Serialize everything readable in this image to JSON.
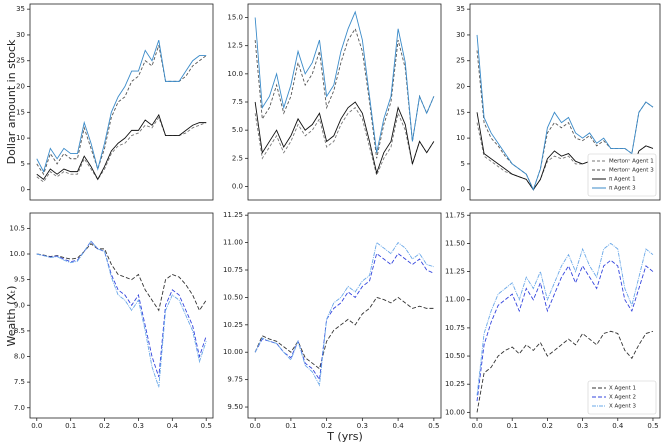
{
  "figure": {
    "ylabel_top": "Dollar amount in stock",
    "ylabel_bottom": "Wealth (Xₜ)",
    "xlabel": "T (yrs)"
  },
  "chart_data": [
    {
      "type": "line",
      "x": [
        0,
        0.02,
        0.04,
        0.06,
        0.08,
        0.1,
        0.12,
        0.14,
        0.16,
        0.18,
        0.2,
        0.22,
        0.24,
        0.26,
        0.28,
        0.3,
        0.32,
        0.34,
        0.36,
        0.38,
        0.4,
        0.42,
        0.44,
        0.46,
        0.48,
        0.5
      ],
      "xlim": [
        -0.02,
        0.52
      ],
      "ylim": [
        -2,
        36
      ],
      "yticks": [
        0,
        5,
        10,
        15,
        20,
        25,
        30,
        35
      ],
      "series": [
        {
          "color": "#777777",
          "dash": "3,2",
          "values": [
            2.5,
            1.5,
            3.5,
            2.5,
            3.5,
            3,
            3,
            6,
            4,
            2,
            4,
            7,
            8.5,
            9,
            10.5,
            11,
            12.5,
            12,
            14,
            10.5,
            10.5,
            10.5,
            11,
            12,
            12.5,
            13
          ]
        },
        {
          "color": "#555555",
          "dash": "3,2",
          "values": [
            5,
            3,
            7,
            5,
            7,
            6,
            6,
            12,
            8,
            4,
            8,
            14,
            17,
            18,
            21,
            22,
            25,
            24,
            28,
            21,
            21,
            21,
            22,
            24,
            25,
            26
          ]
        },
        {
          "color": "#111111",
          "dash": "none",
          "values": [
            3,
            2,
            4,
            3,
            4,
            3.5,
            3.5,
            6.5,
            4.5,
            2,
            4.5,
            7.5,
            9,
            10,
            11.5,
            11.5,
            13.5,
            12.5,
            14.5,
            10.5,
            10.5,
            10.5,
            11.5,
            12.5,
            13,
            13
          ]
        },
        {
          "color": "#3b8bc9",
          "dash": "none",
          "values": [
            6,
            3.5,
            8,
            6,
            8,
            7,
            7,
            13,
            9,
            4,
            9,
            15,
            18,
            20,
            23,
            23,
            27,
            25,
            29,
            21,
            21,
            21,
            23,
            25,
            26,
            26
          ]
        }
      ]
    },
    {
      "type": "line",
      "x": [
        0,
        0.02,
        0.04,
        0.06,
        0.08,
        0.1,
        0.12,
        0.14,
        0.16,
        0.18,
        0.2,
        0.22,
        0.24,
        0.26,
        0.28,
        0.3,
        0.32,
        0.34,
        0.36,
        0.38,
        0.4,
        0.42,
        0.44,
        0.46,
        0.48,
        0.5
      ],
      "xlim": [
        -0.02,
        0.52
      ],
      "ylim": [
        -1.2,
        16.2
      ],
      "yticks": [
        {
          "value": 0,
          "label": "0.0"
        },
        2.5,
        {
          "value": 5,
          "label": "5.0"
        },
        7.5,
        {
          "value": 10,
          "label": "10.0"
        },
        12.5,
        {
          "value": 15,
          "label": "15.0"
        }
      ],
      "series": [
        {
          "color": "#777777",
          "dash": "3,2",
          "values": [
            6.5,
            2.5,
            3.5,
            4.5,
            3,
            4,
            5.5,
            4.5,
            5,
            6,
            3.5,
            4,
            5.5,
            6.5,
            7,
            6,
            3.5,
            1,
            2.5,
            3.5,
            6.5,
            5,
            2,
            4,
            3,
            4
          ]
        },
        {
          "color": "#555555",
          "dash": "3,2",
          "values": [
            13,
            6,
            7,
            9,
            6.5,
            8,
            11,
            9,
            10,
            12,
            7,
            8.5,
            11,
            13,
            14,
            12,
            7.5,
            2.5,
            5.5,
            7.5,
            13,
            10.5,
            4,
            8,
            6.5,
            8
          ]
        },
        {
          "color": "#111111",
          "dash": "none",
          "values": [
            7.5,
            3,
            4,
            5,
            3.5,
            4.5,
            6,
            5,
            5.5,
            6.5,
            4,
            4.5,
            6,
            7,
            7.5,
            6.5,
            4,
            1.2,
            3,
            4,
            7,
            5.5,
            2,
            4,
            3,
            4
          ]
        },
        {
          "color": "#3b8bc9",
          "dash": "none",
          "values": [
            15,
            7,
            8,
            10,
            7,
            9,
            12,
            10,
            11,
            13,
            8,
            9,
            12,
            14,
            15.5,
            13,
            8,
            3,
            6,
            8,
            14,
            11,
            4,
            8,
            6.5,
            8
          ]
        }
      ]
    },
    {
      "type": "line",
      "x": [
        0,
        0.02,
        0.04,
        0.06,
        0.08,
        0.1,
        0.12,
        0.14,
        0.16,
        0.18,
        0.2,
        0.22,
        0.24,
        0.26,
        0.28,
        0.3,
        0.32,
        0.34,
        0.36,
        0.38,
        0.4,
        0.42,
        0.44,
        0.46,
        0.48,
        0.5
      ],
      "xlim": [
        -0.02,
        0.52
      ],
      "ylim": [
        -2,
        36
      ],
      "yticks": [
        0,
        5,
        10,
        15,
        20,
        25,
        30,
        35
      ],
      "legend": "lower right",
      "series": [
        {
          "name": "Mertonᶜ Agent 1",
          "color": "#777777",
          "dash": "3,2",
          "values": [
            13,
            6.5,
            5.5,
            4.5,
            3.5,
            3,
            2.5,
            2,
            0,
            2,
            5.5,
            6.5,
            6,
            6.5,
            5,
            5,
            5.5,
            4.5,
            5,
            4,
            4,
            4,
            3.5,
            7.5,
            8.5,
            8
          ]
        },
        {
          "name": "Mertonᶜ Agent 3",
          "color": "#555555",
          "dash": "3,2",
          "values": [
            27,
            13,
            10,
            8.5,
            6.5,
            5,
            4,
            3,
            0,
            4,
            11,
            13,
            12,
            13,
            10,
            9.5,
            10.5,
            8.5,
            9.5,
            8,
            8,
            8,
            7,
            15,
            17,
            16
          ]
        },
        {
          "name": "π Agent 1",
          "color": "#111111",
          "dash": "none",
          "values": [
            15,
            7,
            6,
            5,
            4,
            3,
            2.5,
            2,
            0,
            2,
            6,
            7.5,
            6.5,
            7,
            5.5,
            5,
            5.5,
            4.5,
            5,
            4,
            4,
            4,
            3.5,
            7.5,
            8.5,
            8
          ]
        },
        {
          "name": "π Agent 3",
          "color": "#3b8bc9",
          "dash": "none",
          "values": [
            30,
            14,
            11,
            9,
            7,
            5,
            4,
            3,
            0,
            4,
            12,
            15,
            13,
            14,
            11,
            10,
            11,
            9,
            10,
            8,
            8,
            8,
            7,
            15,
            17,
            16
          ]
        }
      ]
    },
    {
      "type": "line",
      "x": [
        0,
        0.02,
        0.04,
        0.06,
        0.08,
        0.1,
        0.12,
        0.14,
        0.16,
        0.18,
        0.2,
        0.22,
        0.24,
        0.26,
        0.28,
        0.3,
        0.32,
        0.34,
        0.36,
        0.38,
        0.4,
        0.42,
        0.44,
        0.46,
        0.48,
        0.5
      ],
      "xlim": [
        -0.02,
        0.52
      ],
      "xticks": [
        {
          "value": 0,
          "label": "0.0"
        },
        0.1,
        0.2,
        0.3,
        0.4,
        0.5
      ],
      "ylim": [
        6.8,
        10.8
      ],
      "yticks": [
        {
          "value": 7,
          "label": "7.0"
        },
        7.5,
        {
          "value": 8,
          "label": "8.0"
        },
        8.5,
        {
          "value": 9,
          "label": "9.0"
        },
        9.5,
        {
          "value": 10,
          "label": "10.0"
        },
        10.5
      ],
      "series": [
        {
          "color": "#333333",
          "dash": "4,2",
          "values": [
            10,
            9.98,
            9.95,
            9.97,
            9.93,
            9.9,
            9.92,
            10.05,
            10.2,
            10.1,
            10.1,
            9.8,
            9.6,
            9.55,
            9.5,
            9.6,
            9.3,
            9.1,
            8.9,
            9.5,
            9.6,
            9.55,
            9.4,
            9.2,
            8.9,
            9.1
          ]
        },
        {
          "color": "#3344dd",
          "dash": "4,2",
          "values": [
            10,
            9.97,
            9.94,
            9.96,
            9.9,
            9.85,
            9.88,
            10.05,
            10.25,
            10.1,
            10.05,
            9.6,
            9.3,
            9.2,
            9,
            9.2,
            8.6,
            8,
            7.6,
            9,
            9.3,
            9.2,
            8.9,
            8.6,
            8,
            8.4
          ]
        },
        {
          "color": "#6aa8e8",
          "dash": "4,1,1,1",
          "values": [
            10,
            9.97,
            9.93,
            9.95,
            9.88,
            9.83,
            9.86,
            10.05,
            10.25,
            10.1,
            10.05,
            9.55,
            9.2,
            9.1,
            8.9,
            9.1,
            8.5,
            7.8,
            7.4,
            8.9,
            9.2,
            9.1,
            8.8,
            8.5,
            7.9,
            8.3
          ]
        }
      ]
    },
    {
      "type": "line",
      "x": [
        0,
        0.02,
        0.04,
        0.06,
        0.08,
        0.1,
        0.12,
        0.14,
        0.16,
        0.18,
        0.2,
        0.22,
        0.24,
        0.26,
        0.28,
        0.3,
        0.32,
        0.34,
        0.36,
        0.38,
        0.4,
        0.42,
        0.44,
        0.46,
        0.48,
        0.5
      ],
      "xlim": [
        -0.02,
        0.52
      ],
      "xticks": [
        {
          "value": 0,
          "label": "0.0"
        },
        0.1,
        0.2,
        0.3,
        0.4,
        0.5
      ],
      "ylim": [
        9.4,
        11.27
      ],
      "yticks": [
        {
          "value": 9.5,
          "label": "9.50"
        },
        9.75,
        {
          "value": 10,
          "label": "10.00"
        },
        10.25,
        {
          "value": 10.5,
          "label": "10.50"
        },
        10.75,
        {
          "value": 11,
          "label": "11.00"
        },
        11.25
      ],
      "series": [
        {
          "color": "#333333",
          "dash": "4,2",
          "values": [
            10,
            10.15,
            10.12,
            10.1,
            10.05,
            10,
            10.1,
            9.95,
            9.9,
            9.85,
            10.1,
            10.2,
            10.25,
            10.3,
            10.25,
            10.35,
            10.4,
            10.5,
            10.48,
            10.45,
            10.5,
            10.45,
            10.4,
            10.42,
            10.4,
            10.4
          ]
        },
        {
          "color": "#3344dd",
          "dash": "4,2",
          "values": [
            10,
            10.12,
            10.1,
            10.08,
            10,
            9.95,
            10.1,
            9.9,
            9.85,
            9.75,
            10.3,
            10.4,
            10.45,
            10.55,
            10.5,
            10.6,
            10.65,
            10.9,
            10.85,
            10.8,
            10.9,
            10.85,
            10.8,
            10.85,
            10.75,
            10.72
          ]
        },
        {
          "color": "#6aa8e8",
          "dash": "4,1,1,1",
          "values": [
            10,
            10.13,
            10.1,
            10.08,
            10,
            9.93,
            10.1,
            9.88,
            9.82,
            9.7,
            10.3,
            10.45,
            10.5,
            10.6,
            10.55,
            10.65,
            10.7,
            11,
            10.95,
            10.9,
            11,
            10.95,
            10.85,
            10.9,
            10.8,
            10.78
          ]
        }
      ]
    },
    {
      "type": "line",
      "x": [
        0,
        0.02,
        0.04,
        0.06,
        0.08,
        0.1,
        0.12,
        0.14,
        0.16,
        0.18,
        0.2,
        0.22,
        0.24,
        0.26,
        0.28,
        0.3,
        0.32,
        0.34,
        0.36,
        0.38,
        0.4,
        0.42,
        0.44,
        0.46,
        0.48,
        0.5
      ],
      "xlim": [
        -0.02,
        0.52
      ],
      "xticks": [
        {
          "value": 0,
          "label": "0.0"
        },
        0.1,
        0.2,
        0.3,
        0.4,
        0.5
      ],
      "ylim": [
        9.95,
        11.77
      ],
      "yticks": [
        {
          "value": 10,
          "label": "10.00"
        },
        10.25,
        {
          "value": 10.5,
          "label": "10.50"
        },
        10.75,
        {
          "value": 11,
          "label": "11.00"
        },
        11.25,
        {
          "value": 11.5,
          "label": "11.50"
        },
        11.75
      ],
      "legend": "lower right",
      "series": [
        {
          "name": "X Agent 1",
          "color": "#333333",
          "dash": "4,2",
          "values": [
            10,
            10.35,
            10.4,
            10.5,
            10.55,
            10.58,
            10.52,
            10.6,
            10.55,
            10.62,
            10.5,
            10.55,
            10.6,
            10.65,
            10.6,
            10.7,
            10.65,
            10.6,
            10.7,
            10.72,
            10.7,
            10.55,
            10.48,
            10.6,
            10.7,
            10.72
          ]
        },
        {
          "name": "X Agent 2",
          "color": "#3344dd",
          "dash": "4,2",
          "values": [
            10.1,
            10.6,
            10.8,
            10.95,
            11,
            11.05,
            10.9,
            11.1,
            11,
            11.15,
            10.9,
            11.05,
            11.2,
            11.3,
            11.15,
            11.3,
            11.2,
            11.1,
            11.3,
            11.35,
            11.3,
            11,
            10.9,
            11.1,
            11.3,
            11.25
          ]
        },
        {
          "name": "X Agent 3",
          "color": "#6aa8e8",
          "dash": "4,1,1,1",
          "values": [
            10.15,
            10.7,
            10.9,
            11.05,
            11.1,
            11.15,
            11,
            11.2,
            11.1,
            11.25,
            11,
            11.15,
            11.3,
            11.4,
            11.25,
            11.45,
            11.3,
            11.2,
            11.45,
            11.5,
            11.45,
            11.1,
            10.95,
            11.2,
            11.45,
            11.4
          ]
        }
      ]
    }
  ]
}
